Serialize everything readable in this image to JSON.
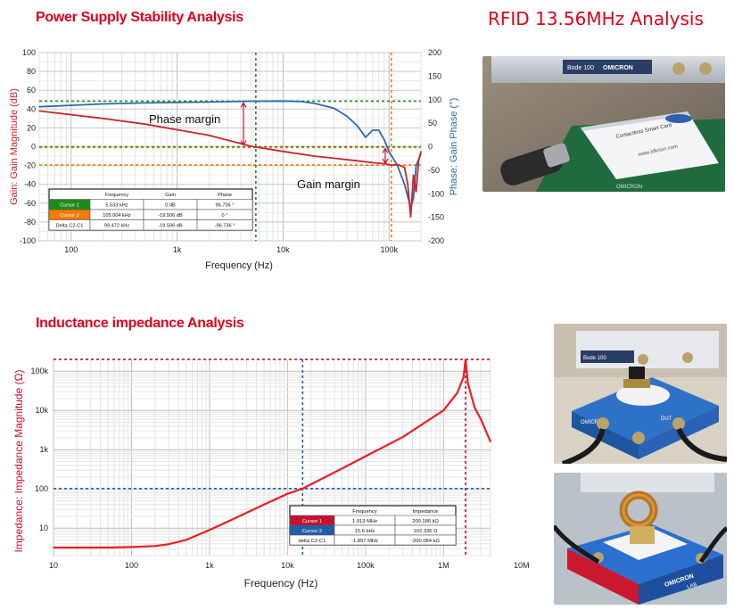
{
  "headings": {
    "power": "Power Supply Stability Analysis",
    "rfid": "RFID 13.56MHz Analysis",
    "inductance": "Inductance impedance Analysis"
  },
  "colors": {
    "heading": "#e0001b",
    "gain_trace": "#c8242b",
    "phase_trace": "#2c6aab",
    "cursor1_green": "#1d8a1d",
    "cursor2_orange": "#f07c00",
    "impedance_trace": "#ee1c24",
    "cursor_red": "#c8102e",
    "cursor_blue": "#1f5fa8"
  },
  "chart_data": [
    {
      "type": "line",
      "title": "",
      "xlabel": "Frequency (Hz)",
      "ylabel": "Gain: Gain Magnitude (dB)",
      "y2label": "Phase: Gain Phase (°)",
      "xscale": "log",
      "xlim": [
        50,
        200000
      ],
      "ylim": [
        -100,
        100
      ],
      "y2lim": [
        -200,
        200
      ],
      "grid": true,
      "x_ticks": [
        "100",
        "1k",
        "10k",
        "100k"
      ],
      "y_ticks": [
        "100",
        "80",
        "60",
        "40",
        "20",
        "0",
        "-20",
        "-40",
        "-60",
        "-80",
        "-100"
      ],
      "y2_ticks": [
        "200",
        "150",
        "100",
        "50",
        "0",
        "-50",
        "-100",
        "-150",
        "-200"
      ],
      "series": [
        {
          "role": "gain",
          "x": [
            50,
            100,
            200,
            500,
            1000,
            2000,
            5000,
            10000,
            20000,
            50000,
            70000,
            90000,
            105000,
            120000,
            140000,
            150000,
            160000,
            170000,
            180000,
            190000,
            200000
          ],
          "y": [
            38,
            34,
            30,
            24,
            18,
            12,
            0.5,
            -5,
            -10,
            -15,
            -17,
            -18,
            -19.5,
            -19,
            -22,
            -40,
            -75,
            -30,
            -48,
            -15,
            -5
          ]
        },
        {
          "role": "phase",
          "x": [
            50,
            100,
            200,
            500,
            1000,
            2000,
            5000,
            10000,
            15000,
            20000,
            30000,
            40000,
            50000,
            60000,
            70000,
            80000,
            90000,
            100000,
            120000,
            140000,
            160000,
            170000,
            180000,
            200000
          ],
          "y": [
            85,
            88,
            91,
            93,
            94,
            95,
            96.7,
            97,
            96,
            92,
            82,
            65,
            45,
            20,
            35,
            35,
            15,
            -10,
            -40,
            -80,
            -130,
            -110,
            -40,
            -15
          ]
        }
      ],
      "annotations": [
        "Phase margin",
        "Gain margin"
      ],
      "cursors": [
        {
          "label": "Cursor 1",
          "x": 5533,
          "y": 0
        },
        {
          "label": "Cursor 2",
          "x": 105004,
          "y": -19.506
        }
      ],
      "reference_lines": [
        {
          "axis": "y2",
          "value": 96.736
        },
        {
          "axis": "y2",
          "value": 0
        }
      ],
      "table": {
        "headers": [
          "",
          "Frequency",
          "Gain",
          "Phase"
        ],
        "rows": [
          [
            "Cursor 1",
            "5.533 kHz",
            "0 dB",
            "96.736 °"
          ],
          [
            "Cursor 2",
            "105.004 kHz",
            "-19.506 dB",
            "0 °"
          ],
          [
            "Delta C2-C1",
            "99.472 kHz",
            "-19.506 dB",
            "-96.736 °"
          ]
        ]
      }
    },
    {
      "type": "line",
      "title": "",
      "xlabel": "Frequency (Hz)",
      "ylabel": "Impedance: Impedance Magnitude (Ω)",
      "xscale": "log",
      "yscale": "log",
      "xlim": [
        10,
        4000000
      ],
      "ylim": [
        2,
        200000
      ],
      "grid": true,
      "x_ticks": [
        "10",
        "100",
        "1k",
        "10k",
        "100k",
        "1M",
        "10M"
      ],
      "y_ticks": [
        "100k",
        "10k",
        "1k",
        "100",
        "10"
      ],
      "series": [
        {
          "role": "impedance",
          "x": [
            10,
            50,
            100,
            200,
            300,
            500,
            1000,
            2000,
            5000,
            10000,
            15600,
            50000,
            100000,
            300000,
            1000000,
            1500000,
            1800000,
            1913000,
            2050000,
            2500000,
            3000000,
            4000000
          ],
          "y": [
            3.2,
            3.2,
            3.3,
            3.5,
            3.9,
            5,
            9,
            17,
            40,
            75,
            102,
            330,
            680,
            2100,
            10000,
            28000,
            70000,
            200186,
            50000,
            12000,
            6000,
            1600
          ]
        }
      ],
      "cursors": [
        {
          "label": "Cursor 1",
          "x": 1913000,
          "y": 200186
        },
        {
          "label": "Cursor 2",
          "x": 15600,
          "y": 102.336
        }
      ],
      "table": {
        "headers": [
          "",
          "Frequency",
          "Impedance"
        ],
        "rows": [
          [
            "Cursor 1",
            "1.913 MHz",
            "200.186 kΩ"
          ],
          [
            "Cursor 2",
            "15.6 kHz",
            "102.336 Ω"
          ],
          [
            "delta C2-C1",
            "-1.897 MHz",
            "-200.084 kΩ"
          ]
        ]
      }
    }
  ],
  "photos": {
    "rfid": {
      "device_label": "Bode 100",
      "brand": "OMICRON",
      "card_line1": "Contactless Smart Card",
      "card_line2": "www.idkrion.com",
      "board_text": "OMICRON"
    },
    "inductor_1": {
      "brand": "OMICRON",
      "device_label": "Bode 100",
      "fixture_label": "DUT"
    },
    "inductor_2": {
      "brand": "OMICRON",
      "sub_brand": "LAB"
    }
  }
}
